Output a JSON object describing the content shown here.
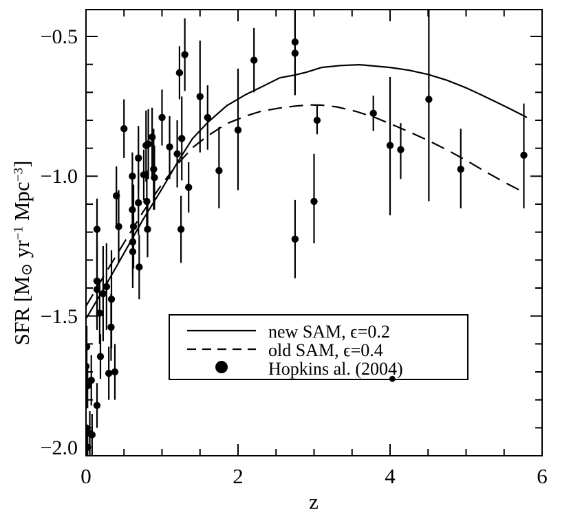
{
  "figure_title": "",
  "axes": {
    "x": {
      "title": "z",
      "tick_labels": [
        "0",
        "2",
        "4",
        "6"
      ],
      "tick_values": [
        0,
        2,
        4,
        6
      ],
      "minor_step": 0.5,
      "range": [
        0,
        6
      ]
    },
    "y": {
      "title_parts": {
        "p1": "SFR [M",
        "sun": "⊙",
        "p2": " yr",
        "sup1": "−1",
        "p3": " Mpc",
        "sup2": "−3",
        "p4": "]"
      },
      "tick_labels": [
        "−0.5",
        "−1.0",
        "−1.5",
        "−2.0"
      ],
      "tick_values": [
        -0.5,
        -1.0,
        -1.5,
        -2.0
      ],
      "minor_step": 0.1,
      "range": [
        -2.0,
        -0.404
      ]
    }
  },
  "legend": {
    "entries": [
      {
        "label": "new SAM, ϵ=0.2",
        "style": "solid-line"
      },
      {
        "label": "old SAM, ϵ=0.4",
        "style": "dashed-line"
      },
      {
        "label": "Hopkins al. (2004)",
        "style": "filled-circle"
      }
    ]
  },
  "colors": {
    "foreground": "#000000",
    "background": "#ffffff"
  },
  "chart_data": {
    "type": "scatter",
    "title": "",
    "xlabel": "z",
    "ylabel": "SFR [M⊙ yr⁻¹ Mpc⁻³]",
    "xlim": [
      0,
      6
    ],
    "ylim": [
      -2.0,
      -0.404
    ],
    "grid": false,
    "legend_position": "inside lower-center",
    "x_ticks": [
      0,
      2,
      4,
      6
    ],
    "x_minor_step": 0.5,
    "y_ticks": [
      -0.5,
      -1.0,
      -1.5,
      -2.0
    ],
    "y_minor_step": 0.1,
    "series": [
      {
        "name": "new SAM, ϵ=0.2",
        "type": "line",
        "style": "solid",
        "points": [
          [
            0,
            -1.51
          ],
          [
            0.25,
            -1.395
          ],
          [
            0.5,
            -1.275
          ],
          [
            0.75,
            -1.155
          ],
          [
            1.0,
            -1.045
          ],
          [
            1.2,
            -0.952
          ],
          [
            1.4,
            -0.866
          ],
          [
            1.6,
            -0.808
          ],
          [
            1.85,
            -0.748
          ],
          [
            2.1,
            -0.708
          ],
          [
            2.3,
            -0.682
          ],
          [
            2.55,
            -0.648
          ],
          [
            2.75,
            -0.638
          ],
          [
            2.9,
            -0.628
          ],
          [
            3.1,
            -0.611
          ],
          [
            3.35,
            -0.604
          ],
          [
            3.6,
            -0.601
          ],
          [
            3.8,
            -0.606
          ],
          [
            4.0,
            -0.611
          ],
          [
            4.25,
            -0.621
          ],
          [
            4.5,
            -0.636
          ],
          [
            4.75,
            -0.657
          ],
          [
            5.0,
            -0.684
          ],
          [
            5.2,
            -0.709
          ],
          [
            5.45,
            -0.742
          ],
          [
            5.6,
            -0.762
          ],
          [
            5.8,
            -0.79
          ]
        ]
      },
      {
        "name": "old SAM, ϵ=0.4",
        "type": "line",
        "style": "dashed",
        "points": [
          [
            0,
            -1.465
          ],
          [
            0.25,
            -1.35
          ],
          [
            0.5,
            -1.238
          ],
          [
            0.75,
            -1.128
          ],
          [
            1.0,
            -1.028
          ],
          [
            1.2,
            -0.958
          ],
          [
            1.4,
            -0.898
          ],
          [
            1.6,
            -0.856
          ],
          [
            1.85,
            -0.812
          ],
          [
            2.1,
            -0.785
          ],
          [
            2.3,
            -0.768
          ],
          [
            2.55,
            -0.756
          ],
          [
            2.75,
            -0.749
          ],
          [
            2.95,
            -0.745
          ],
          [
            3.1,
            -0.746
          ],
          [
            3.3,
            -0.752
          ],
          [
            3.55,
            -0.768
          ],
          [
            3.8,
            -0.79
          ],
          [
            4.0,
            -0.812
          ],
          [
            4.25,
            -0.841
          ],
          [
            4.5,
            -0.872
          ],
          [
            4.75,
            -0.906
          ],
          [
            5.0,
            -0.943
          ],
          [
            5.25,
            -0.983
          ],
          [
            5.5,
            -1.021
          ],
          [
            5.72,
            -1.052
          ]
        ]
      },
      {
        "name": "Hopkins al. (2004)",
        "type": "scatter",
        "points_format": "[z, value, err_low, err_high]",
        "points": [
          [
            0.0,
            -1.9,
            -1.99,
            -1.8
          ],
          [
            0.05,
            -1.92,
            -2.0,
            -1.84
          ],
          [
            0.08,
            -1.925,
            -2.0,
            -1.85
          ],
          [
            0.02,
            -1.97,
            -2.0,
            -1.9
          ],
          [
            0.02,
            -1.75,
            -1.83,
            -1.67
          ],
          [
            0.07,
            -1.73,
            -1.82,
            -1.64
          ],
          [
            0.0,
            -1.68,
            -1.77,
            -1.59
          ],
          [
            0.01,
            -1.61,
            -1.685,
            -1.535
          ],
          [
            0.145,
            -1.82,
            -1.9,
            -1.74
          ],
          [
            0.19,
            -1.645,
            -1.725,
            -1.565
          ],
          [
            0.3,
            -1.705,
            -1.8,
            -1.61
          ],
          [
            0.38,
            -1.7,
            -1.8,
            -1.6
          ],
          [
            0.18,
            -1.49,
            -1.6,
            -1.38
          ],
          [
            0.225,
            -1.42,
            -1.59,
            -1.25
          ],
          [
            0.27,
            -1.395,
            -1.55,
            -1.24
          ],
          [
            0.145,
            -1.375,
            -1.52,
            -1.23
          ],
          [
            0.145,
            -1.405,
            -1.55,
            -1.26
          ],
          [
            0.335,
            -1.44,
            -1.615,
            -1.265
          ],
          [
            0.33,
            -1.54,
            -1.66,
            -1.42
          ],
          [
            0.43,
            -1.18,
            -1.31,
            -1.05
          ],
          [
            0.615,
            -1.235,
            -1.36,
            -1.11
          ],
          [
            0.615,
            -1.27,
            -1.4,
            -1.14
          ],
          [
            0.7,
            -1.325,
            -1.44,
            -1.21
          ],
          [
            0.81,
            -1.19,
            -1.29,
            -1.09
          ],
          [
            0.625,
            -1.18,
            -1.33,
            -1.03
          ],
          [
            1.25,
            -1.19,
            -1.31,
            -1.07
          ],
          [
            0.145,
            -1.19,
            -1.3,
            -1.08
          ],
          [
            0.5,
            -0.83,
            -0.935,
            -0.725
          ],
          [
            1.0,
            -0.79,
            -0.89,
            -0.69
          ],
          [
            1.23,
            -0.63,
            -0.725,
            -0.535
          ],
          [
            1.3,
            -0.565,
            -0.695,
            -0.435
          ],
          [
            0.87,
            -0.86,
            -1.005,
            -0.755
          ],
          [
            0.82,
            -0.885,
            -1.01,
            -0.76
          ],
          [
            0.79,
            -0.89,
            -1.02,
            -0.765
          ],
          [
            1.1,
            -0.895,
            -1.01,
            -0.785
          ],
          [
            1.2,
            -0.92,
            -1.04,
            -0.8
          ],
          [
            0.69,
            -0.935,
            -1.05,
            -0.82
          ],
          [
            0.89,
            -0.975,
            -1.12,
            -0.83
          ],
          [
            0.9,
            -1.005,
            -1.12,
            -0.89
          ],
          [
            0.61,
            -1.0,
            -1.09,
            -0.915
          ],
          [
            0.76,
            -0.995,
            -1.085,
            -0.905
          ],
          [
            0.4,
            -1.07,
            -1.175,
            -0.965
          ],
          [
            0.69,
            -1.095,
            -1.21,
            -0.98
          ],
          [
            0.8,
            -1.09,
            -1.2,
            -0.98
          ],
          [
            0.61,
            -1.12,
            -1.235,
            -1.005
          ],
          [
            1.26,
            -0.865,
            -1.015,
            -0.715
          ],
          [
            1.5,
            -0.715,
            -0.915,
            -0.515
          ],
          [
            1.6,
            -0.79,
            -0.905,
            -0.675
          ],
          [
            1.75,
            -0.98,
            -1.115,
            -0.825
          ],
          [
            1.35,
            -1.04,
            -1.13,
            -0.95
          ],
          [
            2.0,
            -0.835,
            -1.05,
            -0.615
          ],
          [
            2.21,
            -0.585,
            -0.7,
            -0.47
          ],
          [
            2.75,
            -0.52,
            -0.71,
            -0.39
          ],
          [
            2.75,
            -0.56,
            -0.71,
            -0.39
          ],
          [
            3.04,
            -0.8,
            -0.85,
            -0.745
          ],
          [
            3.0,
            -1.09,
            -1.24,
            -0.92
          ],
          [
            2.75,
            -1.225,
            -1.365,
            -1.085
          ],
          [
            3.78,
            -0.775,
            -0.838,
            -0.712
          ],
          [
            4.0,
            -0.89,
            -1.14,
            -0.645
          ],
          [
            4.14,
            -0.905,
            -1.01,
            -0.81
          ],
          [
            4.51,
            -0.725,
            -1.09,
            -0.4
          ],
          [
            4.93,
            -0.975,
            -1.115,
            -0.83
          ],
          [
            5.76,
            -0.925,
            -1.115,
            -0.74
          ],
          [
            4.03,
            -1.725,
            null,
            null
          ]
        ]
      }
    ]
  }
}
